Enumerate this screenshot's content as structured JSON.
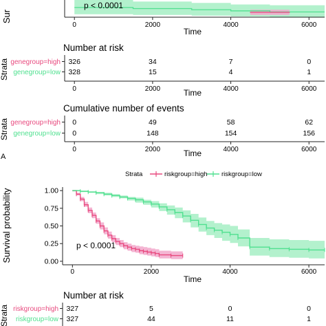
{
  "colors": {
    "high": "#e8497e",
    "low": "#4fe08f",
    "high_band": "#f2a8cb",
    "low_band": "#a6efc4",
    "axis": "#222222"
  },
  "top_panel": {
    "ylabel_fragment": "Sur",
    "pvalue": "p < 0.0001",
    "xlabel": "Time",
    "x_ticks": [
      "0",
      "2000",
      "4000",
      "6000"
    ],
    "number_at_risk": {
      "title": "Number at risk",
      "strata_label": "Strata",
      "xlabel": "Time",
      "x_ticks": [
        "0",
        "2000",
        "4000",
        "6000"
      ],
      "rows": [
        {
          "label": "genegroup=high",
          "group": "high",
          "values": [
            "326",
            "34",
            "7",
            "0"
          ]
        },
        {
          "label": "genegroup=low",
          "group": "low",
          "values": [
            "328",
            "15",
            "4",
            "1"
          ]
        }
      ]
    },
    "cumulative_events": {
      "title": "Cumulative number of events",
      "strata_label": "Strata",
      "xlabel": "Time",
      "x_ticks": [
        "0",
        "2000",
        "4000",
        "6000"
      ],
      "rows": [
        {
          "label": "genegroup=high",
          "group": "high",
          "values": [
            "0",
            "49",
            "58",
            "62"
          ]
        },
        {
          "label": "genegroup=low",
          "group": "low",
          "values": [
            "0",
            "148",
            "154",
            "156"
          ]
        }
      ]
    }
  },
  "panel_label": "A",
  "bottom_panel": {
    "legend": {
      "title": "Strata",
      "items": [
        {
          "label": "riskgroup=high",
          "group": "high"
        },
        {
          "label": "riskgroup=low",
          "group": "low"
        }
      ]
    },
    "ylabel": "Survival probability",
    "pvalue": "p < 0.0001",
    "xlabel": "Time",
    "number_at_risk": {
      "title": "Number at risk",
      "strata_label": "Strata",
      "rows": [
        {
          "label": "riskgroup=high",
          "group": "high",
          "values": [
            "327",
            "5",
            "0",
            "0"
          ]
        },
        {
          "label": "riskgroup=low",
          "group": "low",
          "values": [
            "327",
            "44",
            "11",
            "1"
          ]
        }
      ]
    }
  },
  "chart_data": [
    {
      "type": "line",
      "xlabel": "Time",
      "ylabel": "Sur",
      "xlim": [
        -250,
        6400
      ],
      "ylim": [
        -0.03,
        0.2
      ],
      "x_ticks": [
        0,
        2000,
        4000,
        6000
      ],
      "series": [
        {
          "name": "genegroup=low",
          "group": "low",
          "x": [
            0,
            1500,
            3000,
            4000,
            5000,
            6400
          ],
          "y": [
            0.1,
            0.085,
            0.07,
            0.055,
            0.04,
            0.04
          ],
          "lower": [
            0.01,
            0.0,
            -0.01,
            -0.02,
            -0.03,
            -0.03
          ],
          "upper": [
            0.2,
            0.18,
            0.16,
            0.14,
            0.13,
            0.13
          ]
        },
        {
          "name": "genegroup=high",
          "group": "high",
          "x": [
            4500,
            4500,
            5000,
            5500
          ],
          "y": [
            0.04,
            0.035,
            0.035,
            0.03
          ],
          "lower": [
            0.0,
            0.0,
            0.0,
            0.0
          ],
          "upper": [
            0.07,
            0.07,
            0.07,
            0.07
          ]
        }
      ]
    },
    {
      "type": "line",
      "xlabel": "Time",
      "ylabel": "Survival probability",
      "xlim": [
        -250,
        6400
      ],
      "ylim": [
        -0.05,
        1.05
      ],
      "x_ticks": [
        0,
        2000,
        4000,
        6000
      ],
      "y_ticks": [
        0.0,
        0.25,
        0.5,
        0.75,
        1.0
      ],
      "y_tick_labels": [
        "0.00",
        "0.25",
        "0.50",
        "0.75",
        "1.00"
      ],
      "series": [
        {
          "name": "riskgroup=high",
          "group": "high",
          "x": [
            0,
            100,
            200,
            300,
            400,
            500,
            600,
            700,
            800,
            900,
            1000,
            1100,
            1200,
            1300,
            1400,
            1500,
            1600,
            1700,
            1800,
            1900,
            2000,
            2100,
            2200,
            2500,
            2800
          ],
          "y": [
            1.0,
            0.95,
            0.88,
            0.8,
            0.72,
            0.65,
            0.57,
            0.5,
            0.43,
            0.37,
            0.32,
            0.28,
            0.25,
            0.22,
            0.2,
            0.18,
            0.17,
            0.15,
            0.14,
            0.13,
            0.12,
            0.11,
            0.09,
            0.08,
            0.08
          ],
          "lower": [
            0.99,
            0.93,
            0.85,
            0.77,
            0.68,
            0.61,
            0.53,
            0.45,
            0.38,
            0.32,
            0.27,
            0.23,
            0.2,
            0.17,
            0.15,
            0.13,
            0.12,
            0.1,
            0.09,
            0.08,
            0.07,
            0.06,
            0.04,
            0.03,
            0.03
          ],
          "upper": [
            1.0,
            0.97,
            0.91,
            0.84,
            0.76,
            0.69,
            0.61,
            0.55,
            0.48,
            0.42,
            0.37,
            0.33,
            0.3,
            0.27,
            0.25,
            0.23,
            0.22,
            0.21,
            0.2,
            0.19,
            0.18,
            0.17,
            0.15,
            0.14,
            0.14
          ]
        },
        {
          "name": "riskgroup=low",
          "group": "low",
          "x": [
            0,
            200,
            400,
            600,
            800,
            1000,
            1200,
            1400,
            1600,
            1800,
            2000,
            2200,
            2400,
            2600,
            2800,
            3000,
            3200,
            3400,
            3600,
            3800,
            4000,
            4200,
            4500,
            5000,
            5500,
            6000,
            6400
          ],
          "y": [
            1.0,
            0.99,
            0.98,
            0.97,
            0.95,
            0.93,
            0.91,
            0.89,
            0.87,
            0.84,
            0.81,
            0.77,
            0.73,
            0.69,
            0.64,
            0.58,
            0.52,
            0.47,
            0.44,
            0.41,
            0.38,
            0.33,
            0.2,
            0.18,
            0.17,
            0.16,
            0.16
          ],
          "lower": [
            0.99,
            0.98,
            0.97,
            0.95,
            0.93,
            0.91,
            0.89,
            0.86,
            0.83,
            0.8,
            0.76,
            0.71,
            0.66,
            0.61,
            0.55,
            0.48,
            0.42,
            0.37,
            0.33,
            0.29,
            0.26,
            0.21,
            0.08,
            0.06,
            0.05,
            0.04,
            0.04
          ],
          "upper": [
            1.0,
            1.0,
            0.99,
            0.98,
            0.97,
            0.95,
            0.93,
            0.91,
            0.9,
            0.87,
            0.85,
            0.82,
            0.79,
            0.76,
            0.72,
            0.67,
            0.62,
            0.57,
            0.54,
            0.52,
            0.5,
            0.45,
            0.33,
            0.31,
            0.3,
            0.29,
            0.29
          ]
        }
      ]
    }
  ]
}
